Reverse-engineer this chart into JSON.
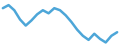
{
  "x": [
    0,
    1,
    2,
    3,
    4,
    5,
    6,
    7,
    8,
    9,
    10,
    11,
    12,
    13,
    14,
    15,
    16,
    17,
    18,
    19,
    20
  ],
  "y": [
    72,
    78,
    68,
    50,
    38,
    48,
    60,
    68,
    62,
    72,
    68,
    58,
    45,
    30,
    18,
    10,
    22,
    12,
    5,
    18,
    25
  ],
  "line_color": "#4da6d8",
  "linewidth": 1.8,
  "background_color": "#ffffff",
  "ylim_min": 0,
  "ylim_max": 88
}
